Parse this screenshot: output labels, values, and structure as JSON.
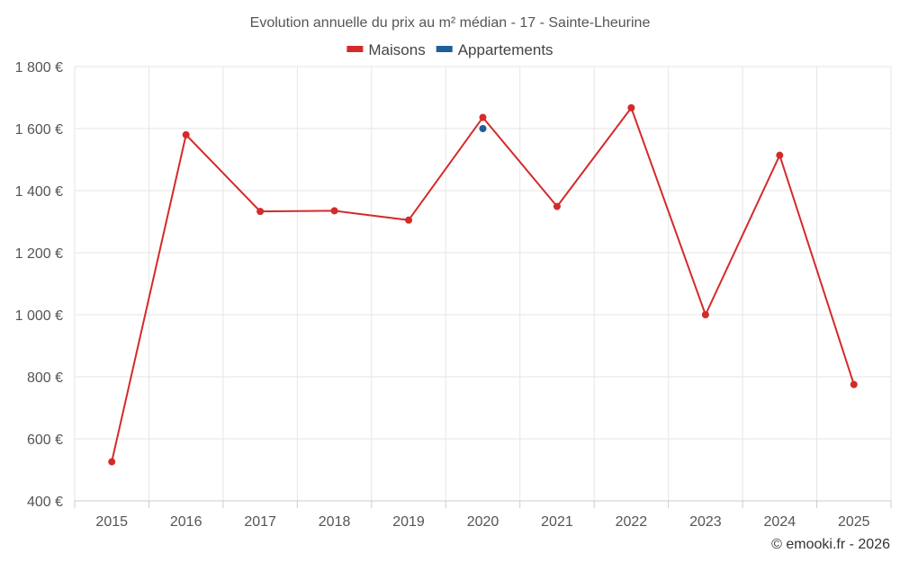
{
  "chart_data": {
    "type": "line",
    "title": "Evolution annuelle du prix au m² médian - 17 - Sainte-Lheurine",
    "categories": [
      "2015",
      "2016",
      "2017",
      "2018",
      "2019",
      "2020",
      "2021",
      "2022",
      "2023",
      "2024",
      "2025"
    ],
    "series": [
      {
        "name": "Maisons",
        "color": "#d42a2a",
        "values": [
          526,
          1580,
          1333,
          1335,
          1305,
          1636,
          1349,
          1667,
          1000,
          1514,
          775
        ]
      },
      {
        "name": "Appartements",
        "color": "#1f5f99",
        "values": [
          null,
          null,
          null,
          null,
          null,
          1600,
          null,
          null,
          null,
          null,
          null
        ]
      }
    ],
    "y_ticks": [
      400,
      600,
      800,
      1000,
      1200,
      1400,
      1600,
      1800
    ],
    "y_tick_labels": [
      "400 €",
      "600 €",
      "800 €",
      "1 000 €",
      "1 200 €",
      "1 400 €",
      "1 600 €",
      "1 800 €"
    ],
    "ylim": [
      400,
      1800
    ],
    "xlabel": "",
    "ylabel": "",
    "grid": true,
    "legend_position": "top-center"
  },
  "credit": "© emooki.fr - 2026"
}
